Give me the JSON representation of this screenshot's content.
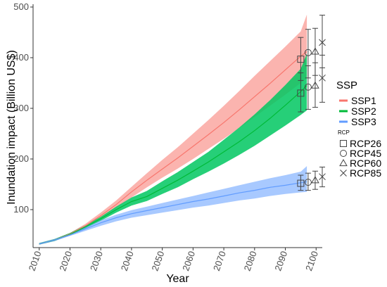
{
  "chart_data": {
    "type": "line",
    "xlabel": "Year",
    "ylabel": "Inundation impact (Billion US$)",
    "xlim": [
      2008,
      2102
    ],
    "ylim": [
      25,
      500
    ],
    "x_ticks": [
      2010,
      2020,
      2030,
      2040,
      2050,
      2060,
      2070,
      2080,
      2090,
      2100
    ],
    "y_ticks": [
      100,
      200,
      300,
      400,
      500
    ],
    "grid": false,
    "legend_ssp": {
      "title": "SSP",
      "entries": [
        {
          "label": "SSP1",
          "color": "#f8766d"
        },
        {
          "label": "SSP2",
          "color": "#00ba38"
        },
        {
          "label": "SSP3",
          "color": "#619cff"
        }
      ]
    },
    "legend_rcp": {
      "title": "RCP",
      "entries": [
        {
          "label": "RCP26",
          "shape": "square"
        },
        {
          "label": "RCP45",
          "shape": "circle"
        },
        {
          "label": "RCP60",
          "shape": "triangle"
        },
        {
          "label": "RCP85",
          "shape": "cross"
        }
      ]
    },
    "series": [
      {
        "name": "SSP1",
        "color": "#f8766d",
        "band_color": "#f8766d",
        "x": [
          2010,
          2015,
          2020,
          2025,
          2030,
          2035,
          2040,
          2045,
          2050,
          2055,
          2060,
          2065,
          2070,
          2075,
          2080,
          2085,
          2090,
          2095,
          2097
        ],
        "mean": [
          32,
          40,
          52,
          68,
          88,
          110,
          135,
          158,
          180,
          202,
          225,
          248,
          272,
          297,
          323,
          349,
          376,
          403,
          412
        ],
        "lower": [
          31,
          38,
          50,
          65,
          83,
          103,
          124,
          144,
          163,
          181,
          200,
          220,
          240,
          261,
          283,
          305,
          327,
          350,
          360
        ],
        "upper": [
          34,
          42,
          54,
          72,
          94,
          118,
          145,
          172,
          198,
          223,
          250,
          277,
          305,
          334,
          364,
          393,
          422,
          452,
          485
        ]
      },
      {
        "name": "SSP2",
        "color": "#00ba38",
        "band_color": "#00c760",
        "x": [
          2010,
          2015,
          2020,
          2025,
          2030,
          2035,
          2040,
          2045,
          2050,
          2055,
          2060,
          2065,
          2070,
          2075,
          2080,
          2085,
          2090,
          2095,
          2097
        ],
        "mean": [
          32,
          40,
          51,
          66,
          82,
          100,
          116,
          126,
          142,
          158,
          176,
          194,
          214,
          234,
          256,
          280,
          306,
          333,
          345
        ],
        "lower": [
          31,
          38,
          50,
          63,
          78,
          94,
          108,
          117,
          131,
          144,
          160,
          175,
          191,
          208,
          226,
          246,
          266,
          287,
          296
        ],
        "upper": [
          34,
          42,
          54,
          69,
          86,
          106,
          124,
          137,
          156,
          174,
          194,
          214,
          238,
          262,
          288,
          316,
          346,
          378,
          408
        ]
      },
      {
        "name": "SSP3",
        "color": "#619cff",
        "band_color": "#619cff",
        "x": [
          2010,
          2015,
          2020,
          2025,
          2030,
          2035,
          2040,
          2045,
          2050,
          2055,
          2060,
          2065,
          2070,
          2075,
          2080,
          2085,
          2090,
          2095,
          2097
        ],
        "mean": [
          32,
          40,
          50,
          62,
          74,
          84,
          92,
          98,
          104,
          110,
          116,
          121,
          127,
          133,
          138,
          144,
          148,
          153,
          155
        ],
        "lower": [
          31,
          38,
          48,
          58,
          68,
          77,
          84,
          89,
          94,
          99,
          104,
          108,
          113,
          118,
          122,
          127,
          131,
          134,
          135
        ],
        "upper": [
          34,
          42,
          52,
          65,
          79,
          90,
          99,
          106,
          113,
          120,
          127,
          134,
          141,
          148,
          155,
          162,
          168,
          175,
          186
        ]
      }
    ],
    "rcp_markers": [
      {
        "ssp": "SSP1",
        "rcp": "RCP26",
        "x": 2095.0,
        "value": 397,
        "low": 355,
        "high": 440
      },
      {
        "ssp": "SSP1",
        "rcp": "RCP45",
        "x": 2097.4,
        "value": 410,
        "low": 360,
        "high": 456
      },
      {
        "ssp": "SSP1",
        "rcp": "RCP60",
        "x": 2099.7,
        "value": 412,
        "low": 365,
        "high": 458
      },
      {
        "ssp": "SSP1",
        "rcp": "RCP85",
        "x": 2102.0,
        "value": 430,
        "low": 380,
        "high": 484
      },
      {
        "ssp": "SSP2",
        "rcp": "RCP26",
        "x": 2095.0,
        "value": 330,
        "low": 293,
        "high": 370
      },
      {
        "ssp": "SSP2",
        "rcp": "RCP45",
        "x": 2097.4,
        "value": 342,
        "low": 298,
        "high": 384
      },
      {
        "ssp": "SSP2",
        "rcp": "RCP60",
        "x": 2099.7,
        "value": 345,
        "low": 302,
        "high": 390
      },
      {
        "ssp": "SSP2",
        "rcp": "RCP85",
        "x": 2102.0,
        "value": 360,
        "low": 312,
        "high": 405
      },
      {
        "ssp": "SSP3",
        "rcp": "RCP26",
        "x": 2095.0,
        "value": 152,
        "low": 138,
        "high": 168
      },
      {
        "ssp": "SSP3",
        "rcp": "RCP45",
        "x": 2097.4,
        "value": 154,
        "low": 138,
        "high": 172
      },
      {
        "ssp": "SSP3",
        "rcp": "RCP60",
        "x": 2099.7,
        "value": 158,
        "low": 140,
        "high": 176
      },
      {
        "ssp": "SSP3",
        "rcp": "RCP85",
        "x": 2102.0,
        "value": 165,
        "low": 145,
        "high": 184
      }
    ]
  }
}
